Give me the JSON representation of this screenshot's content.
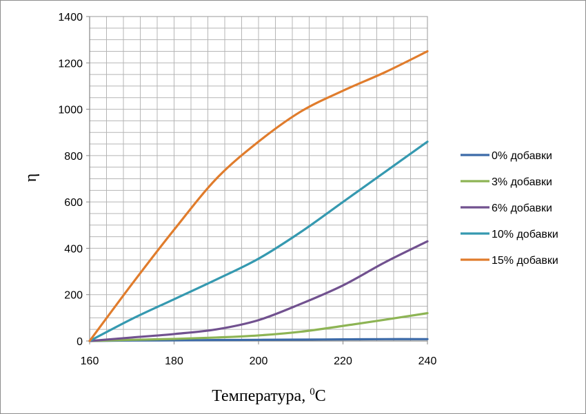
{
  "chart_data": {
    "type": "line",
    "xlabel": "Температура, ",
    "xlabel_sup": "0",
    "xlabel_unit": "С",
    "ylabel": "η",
    "xlim": [
      160,
      240
    ],
    "ylim": [
      0,
      1400
    ],
    "x_ticks": [
      160,
      180,
      200,
      220,
      240
    ],
    "y_ticks": [
      0,
      200,
      400,
      600,
      800,
      1000,
      1200,
      1400
    ],
    "grid": true,
    "legend_position": "right",
    "x": [
      160,
      170,
      180,
      190,
      200,
      210,
      220,
      230,
      240
    ],
    "series": [
      {
        "name": "0% добавки",
        "color": "#3c6aa8",
        "values": [
          0,
          2,
          3,
          4,
          5,
          6,
          7,
          8,
          8
        ]
      },
      {
        "name": "3% добавки",
        "color": "#8db454",
        "values": [
          0,
          5,
          9,
          15,
          24,
          40,
          65,
          92,
          120
        ]
      },
      {
        "name": "6% добавки",
        "color": "#71518f",
        "values": [
          0,
          15,
          30,
          50,
          90,
          160,
          240,
          340,
          430
        ]
      },
      {
        "name": "10% добавки",
        "color": "#3599b0",
        "values": [
          0,
          95,
          180,
          265,
          355,
          470,
          600,
          730,
          860
        ]
      },
      {
        "name": "15% добавки",
        "color": "#e07c2c",
        "values": [
          0,
          245,
          480,
          700,
          860,
          990,
          1080,
          1160,
          1250
        ]
      }
    ]
  }
}
